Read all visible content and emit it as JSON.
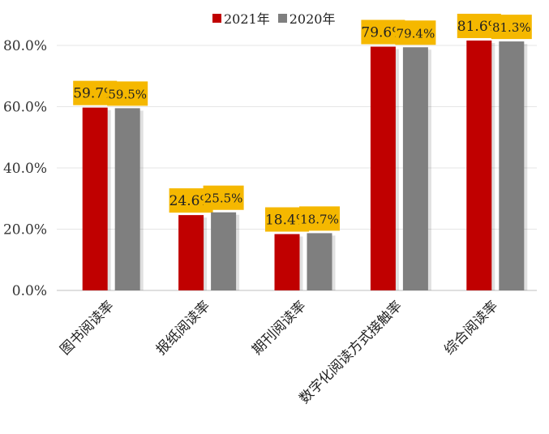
{
  "chart_data": {
    "type": "bar",
    "categories": [
      "图书阅读率",
      "报纸阅读率",
      "期刊阅读率",
      "数字化阅读方式接触率",
      "综合阅读率"
    ],
    "series": [
      {
        "name": "2021年",
        "color": "#c00000",
        "values": [
          59.7,
          24.6,
          18.4,
          79.6,
          81.6
        ],
        "labels": [
          "59.7%",
          "24.6%",
          "18.4%",
          "79.6%",
          "81.6%"
        ]
      },
      {
        "name": "2020年",
        "color": "#7f7f7f",
        "values": [
          59.5,
          25.5,
          18.7,
          79.4,
          81.3
        ],
        "labels": [
          "59.5%",
          "25.5%",
          "18.7%",
          "79.4%",
          "81.3%"
        ]
      }
    ],
    "yticks": [
      "0.0%",
      "20.0%",
      "40.0%",
      "60.0%",
      "80.0%"
    ],
    "ylim": [
      0,
      90
    ],
    "grid": true,
    "legend_position": "top",
    "label_bg_color": "#f5b800"
  }
}
